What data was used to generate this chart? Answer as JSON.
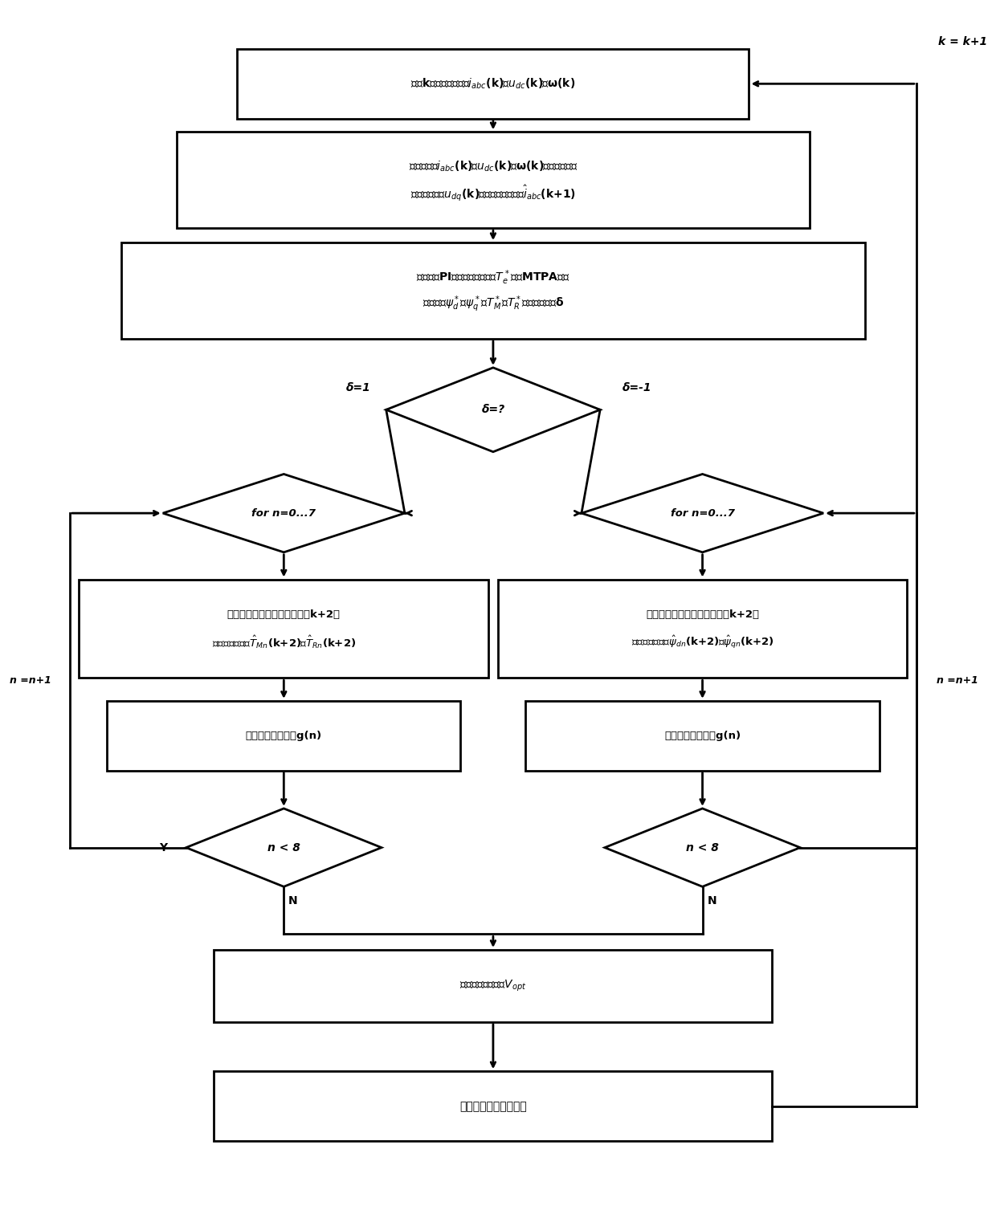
{
  "bg_color": "#ffffff",
  "line_color": "#000000",
  "box_fill": "#ffffff",
  "text_color": "#000000",
  "lw": 2.0,
  "texts": {
    "box1": "测第k个采样周期时刻$i_{abc}$(k)、$u_{dc}$(k)、ω(k)",
    "box2_l1": "将采样到的$i_{abc}$(k)、$u_{dc}$(k)、ω(k)和上个周期求",
    "box2_l2": "得的电压矢量$u_{dq}$(k)，经延时补偿得到$\\hat{i}_{abc}$(k+1)",
    "box3_l1": "根据转速PI控制器输出的转矩$T_e^*$经过MTPA后求",
    "box3_l2": "出给定量$\\psi_d^*$、$\\psi_q^*$、$T_M^*$、$T_R^*$以及滞环输出δ",
    "d0": "δ=?",
    "d0_left": "δ=1",
    "d0_right": "δ=-1",
    "dl_for": "for n=0...7",
    "dr_for": "for n=0...7",
    "bl_pred_l1": "预测不同电压矢量作用后第（k+2）",
    "bl_pred_l2": "个采样周期时刻$\\hat{T}_{Mn}$(k+2)、$\\hat{T}_{Rn}$(k+2)",
    "br_pred_l1": "预测不同电压矢量作用后第（k+2）",
    "br_pred_l2": "个采样周期时刻$\\hat{\\psi}_{dn}$(k+2)、$\\hat{\\psi}_{qn}$(k+2)",
    "blc": "带入对应价值函数g(n)",
    "brc": "带入对应价值函数g(n)",
    "dln": "n < 8",
    "drn": "n < 8",
    "bopt": "求出最优电压矢量$V_{opt}$",
    "bnxt": "进行下一周期预测控制",
    "Y": "Y",
    "N_left": "N",
    "N_right": "N",
    "n_loop_left": "n =n+1",
    "n_loop_right": "n =n+1",
    "k_feedback": "k = k+1"
  }
}
